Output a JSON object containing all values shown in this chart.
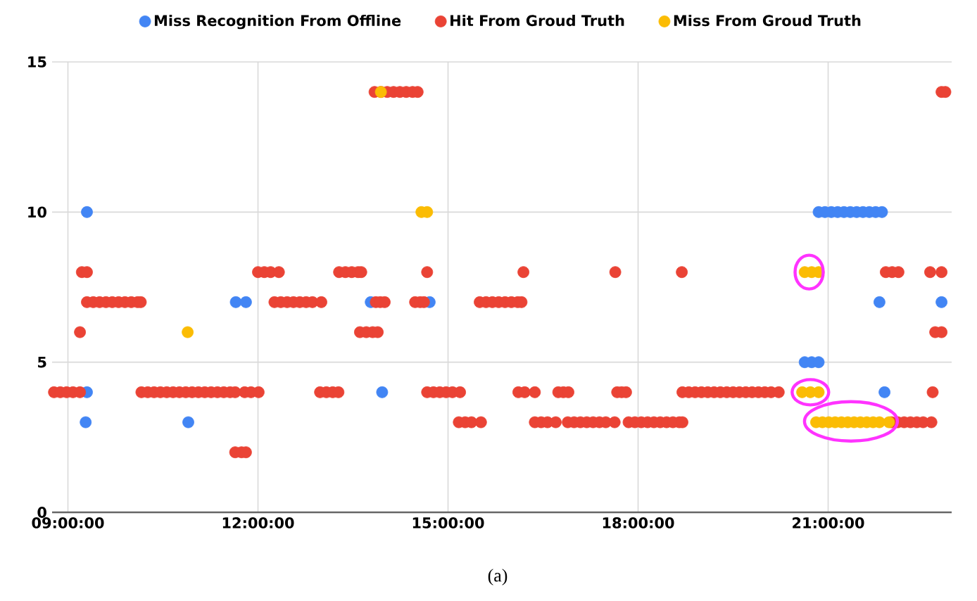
{
  "chart_data": {
    "type": "scatter",
    "marker": "circle",
    "grid": true,
    "legend": "top",
    "xlim": [
      8.75,
      22.95
    ],
    "ylim": [
      0,
      15
    ],
    "xticks": [
      {
        "value": 9,
        "label": "09:00:00"
      },
      {
        "value": 12,
        "label": "12:00:00"
      },
      {
        "value": 15,
        "label": "15:00:00"
      },
      {
        "value": 18,
        "label": "18:00:00"
      },
      {
        "value": 21,
        "label": "21:00:00"
      }
    ],
    "yticks": [
      0,
      5,
      10,
      15
    ],
    "annotations": [
      "(a)"
    ],
    "series": [
      {
        "name": "Miss Recognition From Offline",
        "color": "#4285f4",
        "x": [
          9.3,
          9.28,
          9.3,
          10.9,
          11.65,
          11.81,
          13.78,
          13.96,
          14.71,
          20.63,
          20.74,
          20.85,
          20.85,
          20.95,
          21.05,
          21.15,
          21.25,
          21.35,
          21.45,
          21.55,
          21.65,
          21.75,
          21.85,
          21.81,
          21.89,
          22.79
        ],
        "values": [
          10,
          3,
          4,
          3,
          7,
          7,
          7,
          4,
          7,
          5,
          5,
          5,
          10,
          10,
          10,
          10,
          10,
          10,
          10,
          10,
          10,
          10,
          10,
          7,
          4,
          7
        ]
      },
      {
        "name": "Hit From Groud Truth",
        "color": "#ea4335",
        "x": [
          8.78,
          8.88,
          8.98,
          9.08,
          9.19,
          9.22,
          9.3,
          9.3,
          9.4,
          9.5,
          9.6,
          9.7,
          9.8,
          9.9,
          10.0,
          10.1,
          10.15,
          9.19,
          10.16,
          10.26,
          10.36,
          10.46,
          10.56,
          10.66,
          10.76,
          10.86,
          10.96,
          11.06,
          11.16,
          11.26,
          11.36,
          11.46,
          11.56,
          11.64,
          11.79,
          11.89,
          12.01,
          11.64,
          11.74,
          11.81,
          12.0,
          12.1,
          12.2,
          12.33,
          12.26,
          12.36,
          12.46,
          12.56,
          12.66,
          12.76,
          12.86,
          13.0,
          12.98,
          13.08,
          13.18,
          13.27,
          13.28,
          13.38,
          13.48,
          13.58,
          13.63,
          13.61,
          13.71,
          13.81,
          13.89,
          13.86,
          13.93,
          14.0,
          13.84,
          13.94,
          14.04,
          14.14,
          14.24,
          14.34,
          14.44,
          14.52,
          14.48,
          14.56,
          14.62,
          14.67,
          14.67,
          14.77,
          14.87,
          14.97,
          15.07,
          15.19,
          15.17,
          15.27,
          15.37,
          15.52,
          15.5,
          15.6,
          15.7,
          15.8,
          15.9,
          16.0,
          16.1,
          16.16,
          16.19,
          16.11,
          16.21,
          16.37,
          16.37,
          16.47,
          16.57,
          16.7,
          16.74,
          16.82,
          16.9,
          16.89,
          16.99,
          17.09,
          17.19,
          17.29,
          17.39,
          17.49,
          17.63,
          17.64,
          17.67,
          17.74,
          17.81,
          17.85,
          17.95,
          18.05,
          18.15,
          18.25,
          18.35,
          18.45,
          18.55,
          18.65,
          18.7,
          18.69,
          18.7,
          18.8,
          18.9,
          19.0,
          19.1,
          19.2,
          19.3,
          19.4,
          19.5,
          19.6,
          19.7,
          19.8,
          19.9,
          20.0,
          20.1,
          20.22,
          21.91,
          22.01,
          22.11,
          22.0,
          22.1,
          22.2,
          22.3,
          22.4,
          22.5,
          22.63,
          22.61,
          22.65,
          22.69,
          22.79,
          22.79,
          22.79,
          22.85
        ],
        "values": [
          4,
          4,
          4,
          4,
          4,
          8,
          8,
          7,
          7,
          7,
          7,
          7,
          7,
          7,
          7,
          7,
          7,
          6,
          4,
          4,
          4,
          4,
          4,
          4,
          4,
          4,
          4,
          4,
          4,
          4,
          4,
          4,
          4,
          4,
          4,
          4,
          4,
          2,
          2,
          2,
          8,
          8,
          8,
          8,
          7,
          7,
          7,
          7,
          7,
          7,
          7,
          7,
          4,
          4,
          4,
          4,
          8,
          8,
          8,
          8,
          8,
          6,
          6,
          6,
          6,
          7,
          7,
          7,
          14,
          14,
          14,
          14,
          14,
          14,
          14,
          14,
          7,
          7,
          7,
          8,
          4,
          4,
          4,
          4,
          4,
          4,
          3,
          3,
          3,
          3,
          7,
          7,
          7,
          7,
          7,
          7,
          7,
          7,
          8,
          4,
          4,
          4,
          3,
          3,
          3,
          3,
          4,
          4,
          4,
          3,
          3,
          3,
          3,
          3,
          3,
          3,
          3,
          8,
          4,
          4,
          4,
          3,
          3,
          3,
          3,
          3,
          3,
          3,
          3,
          3,
          3,
          8,
          4,
          4,
          4,
          4,
          4,
          4,
          4,
          4,
          4,
          4,
          4,
          4,
          4,
          4,
          4,
          4,
          8,
          8,
          8,
          3,
          3,
          3,
          3,
          3,
          3,
          3,
          8,
          4,
          6,
          6,
          8,
          14,
          14
        ]
      },
      {
        "name": "Miss From Groud Truth",
        "color": "#fbbc04",
        "x": [
          10.89,
          13.94,
          14.58,
          14.67,
          20.63,
          20.74,
          20.85,
          20.59,
          20.72,
          20.85,
          20.81,
          20.91,
          21.01,
          21.11,
          21.21,
          21.31,
          21.41,
          21.51,
          21.61,
          21.71,
          21.81,
          21.96
        ],
        "values": [
          6,
          14,
          10,
          10,
          8,
          8,
          8,
          4,
          4,
          4,
          3,
          3,
          3,
          3,
          3,
          3,
          3,
          3,
          3,
          3,
          3,
          3
        ]
      }
    ]
  }
}
